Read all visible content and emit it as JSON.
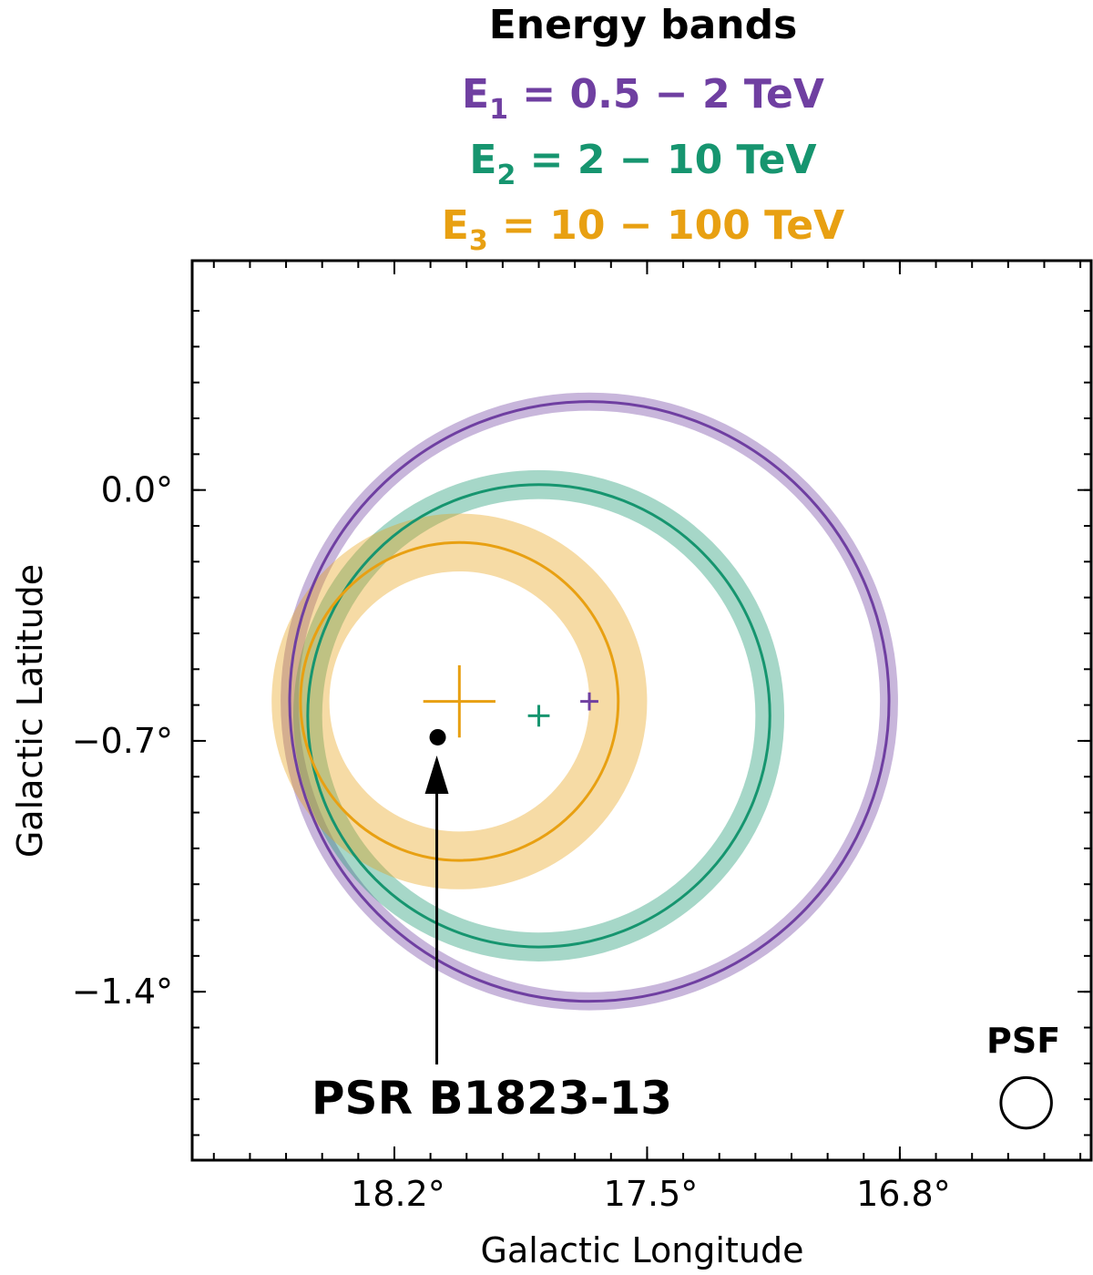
{
  "chart_data": {
    "type": "scatter",
    "legend_title": "Energy bands",
    "legend_placement": "top-center",
    "xlabel": "Galactic Longitude",
    "ylabel": "Galactic Latitude",
    "x_ticks": [
      {
        "value": 18.2,
        "label": "18.2°"
      },
      {
        "value": 17.5,
        "label": "17.5°"
      },
      {
        "value": 16.8,
        "label": "16.8°"
      }
    ],
    "y_ticks": [
      {
        "value": 0.0,
        "label": "0.0°"
      },
      {
        "value": -0.7,
        "label": "−0.7°"
      },
      {
        "value": -1.4,
        "label": "−1.4°"
      }
    ],
    "xlim": [
      18.76,
      16.27
    ],
    "ylim": [
      -1.87,
      0.64
    ],
    "x_inverted": true,
    "grid": false,
    "series": [
      {
        "name": "E",
        "sub": "1",
        "range": " = 0.5 − 2 TeV",
        "color": "#6f3fa1",
        "center": [
          17.66,
          -0.59
        ],
        "radius": 0.83,
        "band_width": 0.025,
        "cross_size": 0.025
      },
      {
        "name": "E",
        "sub": "2",
        "range": " = 2 − 10 TeV",
        "color": "#16956f",
        "center": [
          17.8,
          -0.63
        ],
        "radius": 0.64,
        "band_width": 0.04,
        "cross_size": 0.03
      },
      {
        "name": "E",
        "sub": "3",
        "range": " = 10 − 100 TeV",
        "color": "#e8a012",
        "center": [
          18.02,
          -0.59
        ],
        "radius": 0.44,
        "band_width": 0.08,
        "cross_size": 0.1
      }
    ],
    "pulsar": {
      "label": "PSR B1823-13",
      "x": 18.08,
      "y": -0.69
    },
    "psf": {
      "label": "PSF",
      "x": 16.45,
      "y": -1.71,
      "radius": 0.07
    }
  }
}
